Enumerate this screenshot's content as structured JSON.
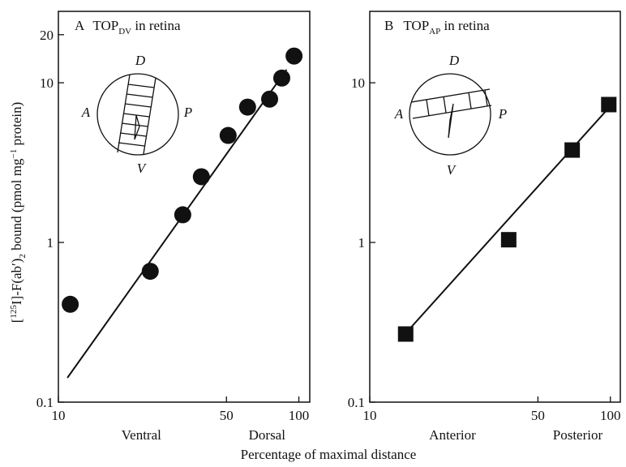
{
  "chart_data": [
    {
      "type": "scatter",
      "panel_label": "A",
      "title": "TOP",
      "title_sub": "DV",
      "title_rest": " in retina",
      "x_scale": "log",
      "y_scale": "log",
      "marker": "circle",
      "color": "#111111",
      "xlim": [
        10,
        111
      ],
      "xticks": [
        10,
        50,
        100
      ],
      "ylim": [
        0.1,
        28
      ],
      "yticks": [
        0.1,
        1,
        10,
        20
      ],
      "x_side_labels": [
        "Ventral",
        "Dorsal"
      ],
      "inset_labels": [
        "D",
        "A",
        "P",
        "V"
      ],
      "points": {
        "x": [
          11.2,
          24.1,
          32.9,
          39.3,
          50.8,
          61.2,
          75.6,
          84.9,
          95.5
        ],
        "y": [
          0.41,
          0.66,
          1.49,
          2.58,
          4.68,
          7.04,
          7.9,
          10.7,
          14.7
        ]
      },
      "fit": {
        "x": [
          10.9,
          88.9
        ],
        "y": [
          0.142,
          12.1
        ]
      }
    },
    {
      "type": "scatter",
      "panel_label": "B",
      "title": "TOP",
      "title_sub": "AP",
      "title_rest": " in retina",
      "x_scale": "log",
      "y_scale": "log",
      "marker": "square",
      "color": "#111111",
      "xlim": [
        10,
        110
      ],
      "xticks": [
        10,
        50,
        100
      ],
      "ylim": [
        0.1,
        28
      ],
      "yticks": [
        0.1,
        1,
        10
      ],
      "x_side_labels": [
        "Anterior",
        "Posterior"
      ],
      "inset_labels": [
        "D",
        "A",
        "P",
        "V"
      ],
      "points": {
        "x": [
          14.1,
          37.8,
          69.4,
          98.5
        ],
        "y": [
          0.267,
          1.04,
          3.79,
          7.3
        ]
      },
      "fit": {
        "x": [
          14.1,
          98.5
        ],
        "y": [
          0.27,
          6.96
        ]
      }
    }
  ],
  "xlabel": "Percentage of maximal distance",
  "ylabel": [
    "[",
    "125",
    "I]-F(ab′)",
    "2",
    " bound (pmol mg",
    "−1",
    " protein)"
  ]
}
